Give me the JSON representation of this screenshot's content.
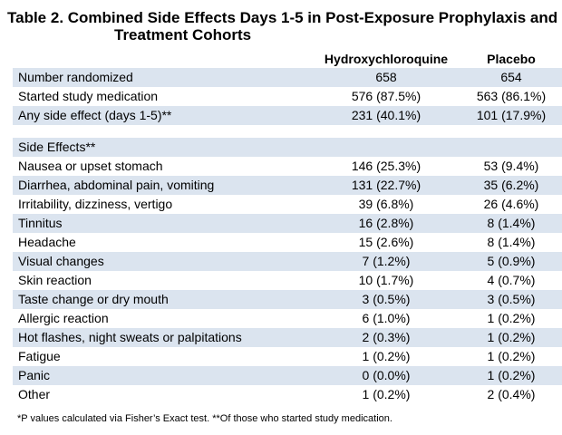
{
  "title": {
    "line1": "Table 2. Combined Side Effects Days 1-5 in Post-Exposure Prophylaxis and",
    "line2": "Treatment Cohorts"
  },
  "columns": [
    "",
    "Hydroxychloroquine",
    "Placebo"
  ],
  "summary_rows": [
    {
      "label": "Number randomized",
      "hcq": "658",
      "placebo": "654"
    },
    {
      "label": "Started study medication",
      "hcq": "576 (87.5%)",
      "placebo": "563 (86.1%)"
    },
    {
      "label": "Any side effect (days 1-5)**",
      "hcq": "231 (40.1%)",
      "placebo": "101 (17.9%)"
    }
  ],
  "section_label": "Side Effects**",
  "side_effects": [
    {
      "label": "Nausea or upset stomach",
      "hcq": "146 (25.3%)",
      "placebo": "53 (9.4%)"
    },
    {
      "label": "Diarrhea, abdominal pain, vomiting",
      "hcq": "131 (22.7%)",
      "placebo": "35 (6.2%)"
    },
    {
      "label": "Irritability, dizziness, vertigo",
      "hcq": "39 (6.8%)",
      "placebo": "26 (4.6%)"
    },
    {
      "label": "Tinnitus",
      "hcq": "16 (2.8%)",
      "placebo": "8 (1.4%)"
    },
    {
      "label": "Headache",
      "hcq": "15 (2.6%)",
      "placebo": "8 (1.4%)"
    },
    {
      "label": "Visual changes",
      "hcq": "7 (1.2%)",
      "placebo": "5 (0.9%)"
    },
    {
      "label": "Skin reaction",
      "hcq": "10 (1.7%)",
      "placebo": "4 (0.7%)"
    },
    {
      "label": "Taste change or dry mouth",
      "hcq": "3 (0.5%)",
      "placebo": "3 (0.5%)"
    },
    {
      "label": "Allergic reaction",
      "hcq": "6 (1.0%)",
      "placebo": "1 (0.2%)"
    },
    {
      "label": "Hot flashes, night sweats or palpitations",
      "hcq": "2 (0.3%)",
      "placebo": "1 (0.2%)"
    },
    {
      "label": "Fatigue",
      "hcq": "1 (0.2%)",
      "placebo": "1 (0.2%)"
    },
    {
      "label": "Panic",
      "hcq": "0 (0.0%)",
      "placebo": "1 (0.2%)"
    },
    {
      "label": "Other",
      "hcq": "1 (0.2%)",
      "placebo": "2 (0.4%)"
    }
  ],
  "footnote": "*P values calculated via Fisher’s Exact test. **Of those who started study medication.",
  "colors": {
    "row_shade": "#dbe4ef"
  }
}
